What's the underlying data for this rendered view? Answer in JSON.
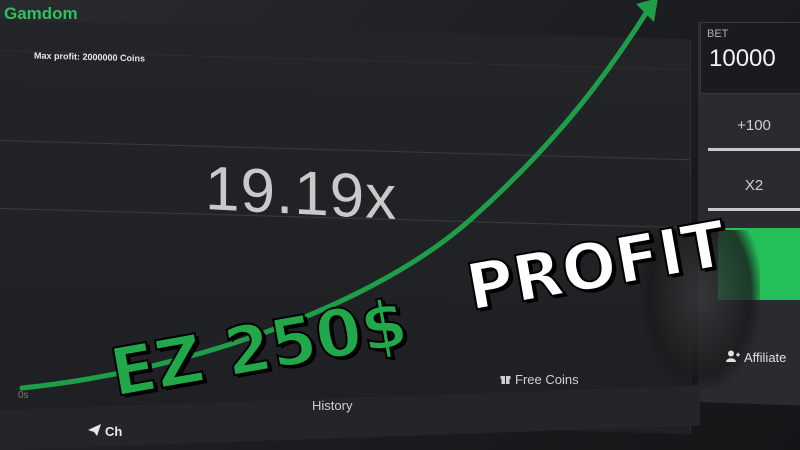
{
  "brand": "Gamdom",
  "game": {
    "max_profit": "Max profit: 2000000 Coins",
    "multiplier": "19.19x",
    "axis_start": "0s"
  },
  "bet_panel": {
    "bet_label": "BET",
    "bet_value": "10000",
    "plus_button": "+100",
    "x2_button": "X2"
  },
  "tabs": {
    "chat": "Ch",
    "history": "History",
    "free_coins": "Free Coins",
    "affiliate": "Affiliate"
  },
  "overlay": {
    "line1": "EZ 250$",
    "line2": "PROFIT"
  },
  "colors": {
    "accent_green": "#23c05a",
    "curve_green": "#1f9e4a"
  }
}
